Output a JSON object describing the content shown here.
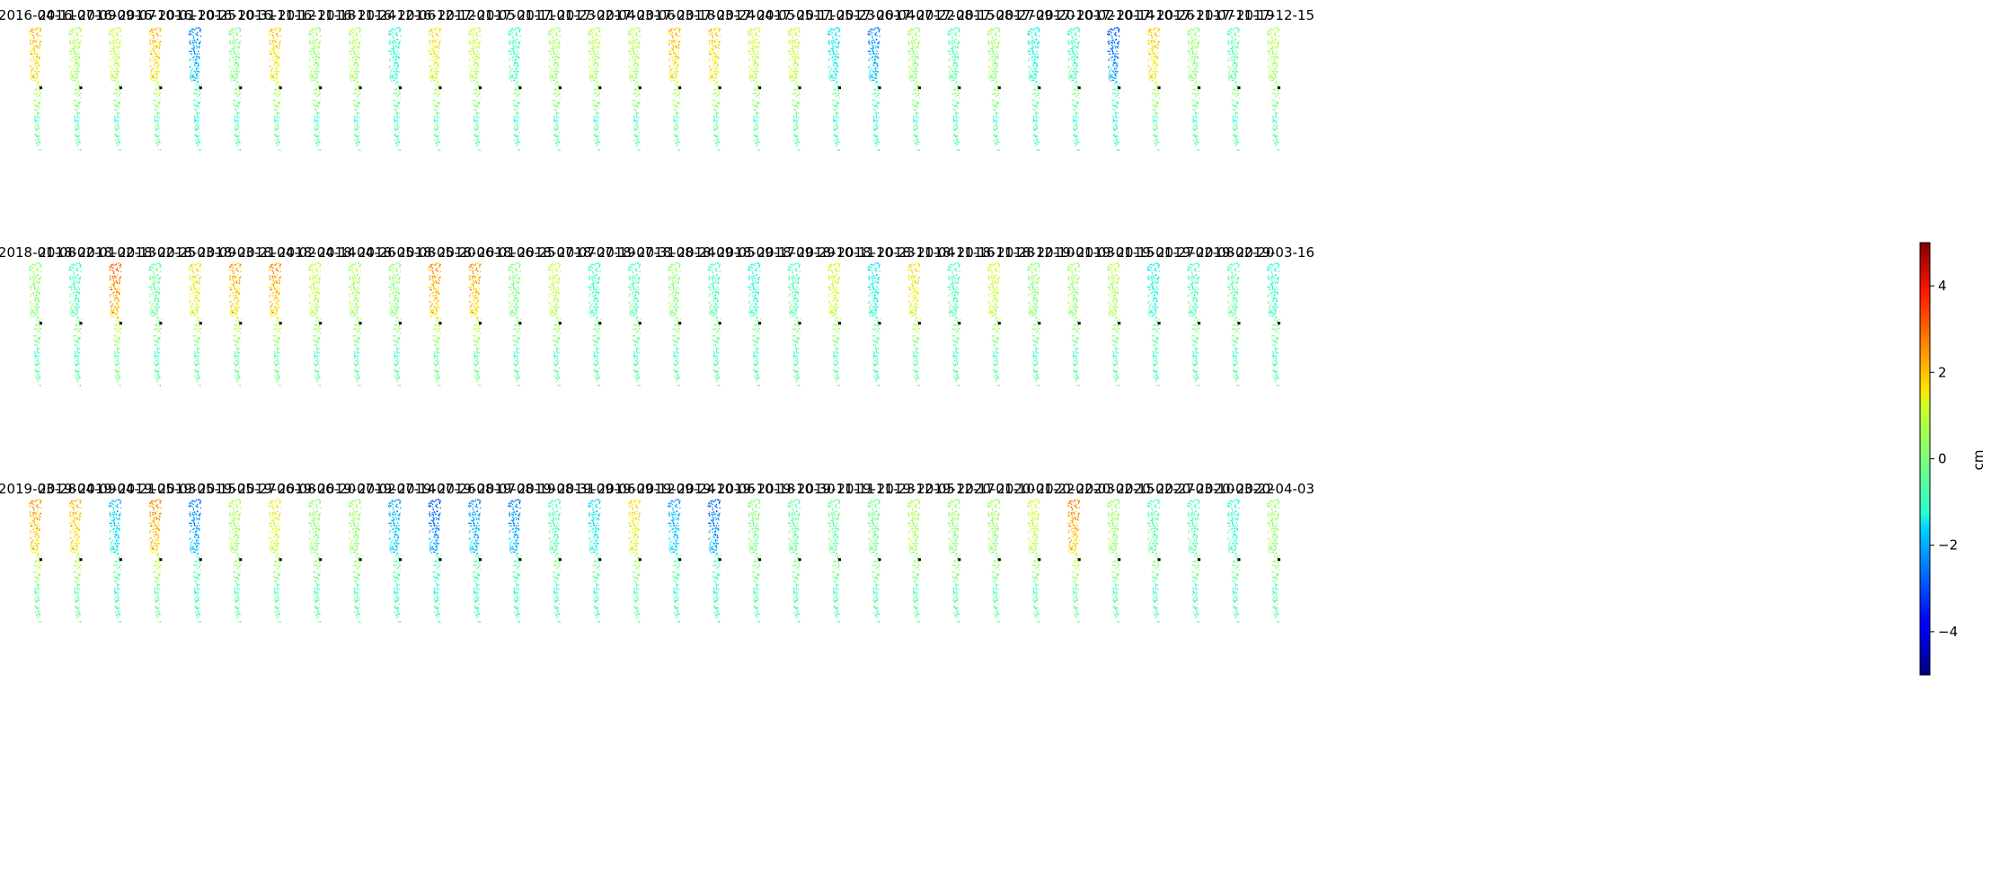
{
  "chart_data": {
    "type": "scatter",
    "description_kind": "small-multiples displacement maps",
    "colormap": "jet",
    "colorbar": {
      "label": "cm",
      "vmin": -5,
      "vmax": 5,
      "ticks": [
        4,
        2,
        0,
        -2,
        -4
      ],
      "tick_labels": [
        "4",
        "2",
        "0",
        "−2",
        "−4"
      ]
    },
    "reference_point_color": "#000000",
    "rows": [
      {
        "dates": [
          "2016-04-11",
          "2016-07-09",
          "2016-09-07",
          "2016-10-01",
          "2016-10-25",
          "2016-10-31",
          "2016-11-12",
          "2016-11-18",
          "2016-11-24",
          "2016-12-06",
          "2016-12-12",
          "2017-01-05",
          "2017-01-11",
          "2017-01-23",
          "2017-02-04",
          "2017-03-06",
          "2017-03-18",
          "2017-03-24",
          "2017-04-05",
          "2017-05-11",
          "2017-05-23",
          "2017-06-04",
          "2017-07-22",
          "2017-08-15",
          "2017-08-27",
          "2017-09-20",
          "2017-10-02",
          "2017-10-14",
          "2017-10-26",
          "2017-11-07",
          "2017-11-19",
          "2017-12-15"
        ],
        "mean_cm": [
          2.0,
          0.5,
          0.8,
          2.0,
          -2.5,
          0.0,
          1.8,
          0.3,
          0.5,
          -1.0,
          1.5,
          0.8,
          -0.8,
          0.4,
          0.6,
          0.6,
          2.0,
          1.8,
          0.9,
          1.0,
          -1.5,
          -2.5,
          0.3,
          -0.5,
          0.3,
          -1.2,
          -0.8,
          -3.0,
          1.8,
          0.2,
          -0.5,
          0.5
        ]
      },
      {
        "dates": [
          "2018-01-08",
          "2018-02-01",
          "2018-02-13",
          "2018-02-25",
          "2018-03-09",
          "2018-03-21",
          "2018-04-02",
          "2018-04-14",
          "2018-04-26",
          "2018-05-08",
          "2018-05-20",
          "2018-06-01",
          "2018-06-25",
          "2018-07-07",
          "2018-07-19",
          "2018-07-31",
          "2018-08-24",
          "2018-09-05",
          "2018-09-17",
          "2018-09-29",
          "2018-10-11",
          "2018-10-23",
          "2018-11-04",
          "2018-11-16",
          "2018-11-28",
          "2018-12-10",
          "2019-01-03",
          "2019-01-15",
          "2019-01-27",
          "2019-02-08",
          "2019-02-20",
          "2019-03-16"
        ],
        "mean_cm": [
          0.2,
          -0.6,
          2.8,
          -0.3,
          1.5,
          2.2,
          2.4,
          0.8,
          0.5,
          0.2,
          2.4,
          2.3,
          0.0,
          0.8,
          -0.8,
          -0.5,
          0.2,
          -0.6,
          -1.0,
          -0.5,
          1.2,
          -1.3,
          1.5,
          -0.6,
          1.0,
          0.2,
          0.3,
          0.6,
          -1.2,
          -0.6,
          -0.4,
          -0.9
        ]
      },
      {
        "dates": [
          "2019-03-28",
          "2019-04-09",
          "2019-04-21",
          "2019-05-03",
          "2019-05-15",
          "2019-05-27",
          "2019-06-08",
          "2019-06-20",
          "2019-07-02",
          "2019-07-14",
          "2019-07-26",
          "2019-08-07",
          "2019-08-19",
          "2019-08-31",
          "2019-09-06",
          "2019-09-12",
          "2019-09-24",
          "2019-10-06",
          "2019-10-18",
          "2019-10-30",
          "2019-11-11",
          "2019-11-23",
          "2019-12-05",
          "2019-12-17",
          "2020-01-10",
          "2020-01-22",
          "2020-02-03",
          "2020-02-15",
          "2020-02-27",
          "2020-03-10",
          "2020-03-22",
          "2020-04-03"
        ],
        "mean_cm": [
          2.3,
          2.0,
          -1.8,
          2.5,
          -2.6,
          0.5,
          1.2,
          0.2,
          0.3,
          -2.2,
          -3.0,
          -2.4,
          -2.6,
          -0.6,
          -1.5,
          1.5,
          -2.2,
          -2.8,
          0.0,
          -0.4,
          -0.3,
          -0.2,
          0.5,
          0.2,
          0.3,
          0.9,
          2.5,
          0.3,
          -0.5,
          -0.5,
          -0.9,
          0.3
        ]
      }
    ],
    "row_titles_visible": [
      [
        "2016-04-11",
        "2016-07-09",
        "2016-09-07",
        "2016-10-01",
        "2016-10-25",
        "2016-10-31",
        "2016-11-12",
        "2016-11-18",
        "2016-11-24",
        "2016-12-06",
        "2016-12-12",
        "2017-01-05",
        "2017-01-11",
        "2017-01-23",
        "2017-02-04",
        "2017-03-06",
        "2017-03-18",
        "2017-03-24",
        "2017-04-05",
        "2017-05-11",
        "2017-05-23",
        "2017-06-04",
        "2017-07-22",
        "2017-08-15",
        "2017-08-27",
        "2017-09-20",
        "2017-10-02",
        "2017-10-14",
        "2017-10-26",
        "2017-11-07",
        "2017-11-19",
        "2017-12-15"
      ],
      [
        "2018-01-08",
        "2018-02-01",
        "2018-02-13",
        "2018-02-25",
        "2018-03-09",
        "2018-03-21",
        "2018-04-02",
        "2018-04-14",
        "2018-04-26",
        "2018-05-08",
        "2018-05-20",
        "2018-06-01",
        "2018-06-25",
        "2018-07-07",
        "2018-07-19",
        "2018-07-31",
        "2018-08-24",
        "2018-09-05",
        "2018-09-17",
        "2018-09-29",
        "2018-10-11",
        "2018-10-23",
        "2018-11-04",
        "2018-11-16",
        "2018-11-28",
        "2018-12-10",
        "2019-01-03",
        "2019-01-15",
        "2019-01-27",
        "2019-02-08",
        "2019-02-20",
        "2019-03-16"
      ],
      [
        "2019-03-28",
        "2019-04-09",
        "2019-04-21",
        "2019-05-03",
        "2019-05-15",
        "2019-05-27",
        "2019-06-08",
        "2019-06-20",
        "2019-07-02",
        "2019-07-14",
        "2019-07-26",
        "2019-08-07",
        "2019-08-19",
        "2019-08-31",
        "2019-09-06",
        "2019-09-12",
        "2019-09-24",
        "2019-10-06",
        "2019-10-18",
        "2019-10-30",
        "2019-11-11",
        "2019-11-23",
        "2019-12-05",
        "2019-12-17",
        "2020-01-10",
        "2020-01-22",
        "2020-02-03",
        "2020-02-15",
        "2020-02-27",
        "2020-03-10",
        "2020-03-22",
        "2020-04-03"
      ]
    ]
  }
}
